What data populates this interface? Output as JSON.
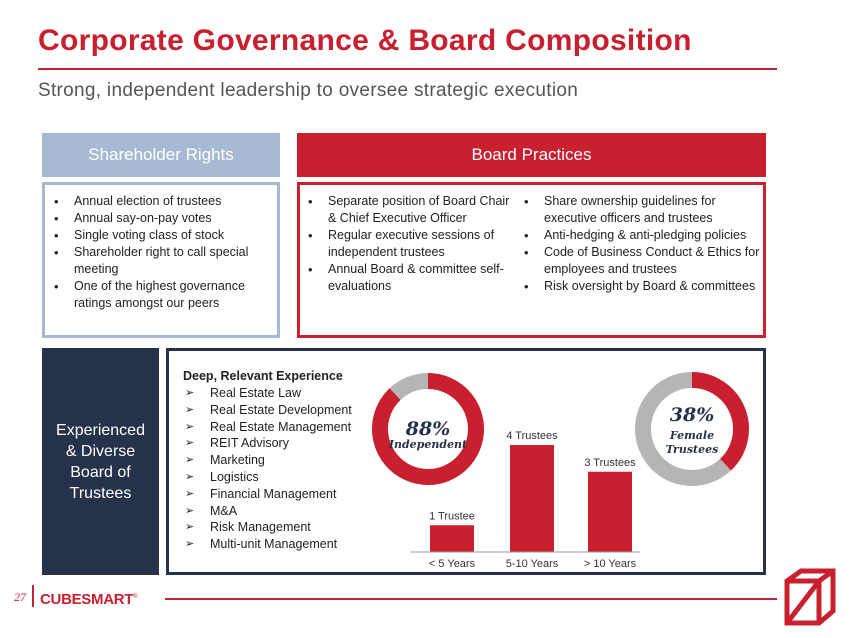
{
  "header": {
    "title": "Corporate Governance & Board Composition",
    "subtitle": "Strong, independent leadership to oversee strategic execution"
  },
  "shareholder_rights": {
    "heading": "Shareholder Rights",
    "items": [
      "Annual election of trustees",
      "Annual say-on-pay votes",
      "Single voting class of stock",
      "Shareholder right to call special meeting",
      "One of the highest governance ratings amongst our peers"
    ]
  },
  "board_practices": {
    "heading": "Board Practices",
    "column1": [
      "Separate position of Board Chair & Chief Executive Officer",
      "Regular executive sessions of independent trustees",
      "Annual Board & committee self-evaluations"
    ],
    "column2": [
      "Share ownership guidelines for executive officers and trustees",
      "Anti-hedging & anti-pledging policies",
      "Code of Business Conduct & Ethics for employees and trustees",
      "Risk oversight by Board & committees"
    ]
  },
  "experience": {
    "side_label": "Experienced & Diverse Board of Trustees",
    "heading": "Deep, Relevant Experience",
    "items": [
      "Real Estate Law",
      "Real Estate Development",
      "Real Estate Management",
      "REIT Advisory",
      "Marketing",
      "Logistics",
      "Financial Management",
      "M&A",
      "Risk Management",
      "Multi-unit Management"
    ]
  },
  "colors": {
    "accent": "#c8202f",
    "navy": "#26324a",
    "light_blue": "#a7bad3",
    "gray": "#b5b5b5"
  },
  "chart_data": [
    {
      "type": "pie",
      "labels": [
        "Independent",
        ""
      ],
      "values": [
        88,
        12
      ],
      "center_value": "88%",
      "center_label": "Independent",
      "colors": [
        "#c8202f",
        "#b5b5b5"
      ]
    },
    {
      "type": "bar",
      "categories": [
        "< 5 Years",
        "5-10 Years",
        "> 10 Years"
      ],
      "values": [
        1,
        4,
        3
      ],
      "data_labels": [
        "1 Trustee",
        "4 Trustees",
        "3 Trustees"
      ],
      "ylim": [
        0,
        4
      ],
      "color": "#c8202f"
    },
    {
      "type": "pie",
      "labels": [
        "Female Trustees",
        ""
      ],
      "values": [
        38,
        62
      ],
      "center_value": "38%",
      "center_label": "Female",
      "center_label2": "Trustees",
      "colors": [
        "#c8202f",
        "#b5b5b5"
      ]
    }
  ],
  "footer": {
    "page_number": "27",
    "logo_text": "CUBESMART",
    "logo_mark": "®"
  }
}
